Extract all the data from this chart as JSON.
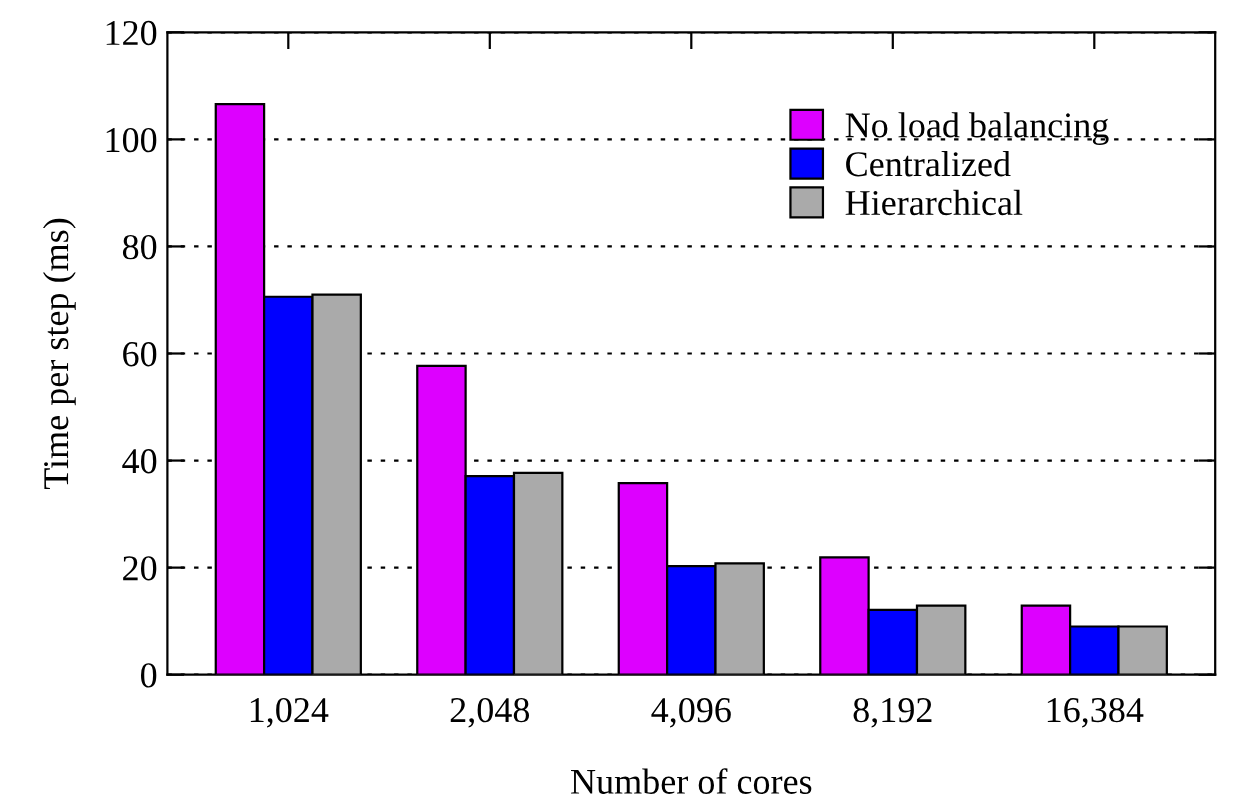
{
  "chart_data": {
    "type": "bar",
    "xlabel": "Number of cores",
    "ylabel": "Time per step (ms)",
    "categories": [
      "1,024",
      "2,048",
      "4,096",
      "8,192",
      "16,384"
    ],
    "series": [
      {
        "name": "No load balancing",
        "color": "#dd00ff",
        "values": [
          106.6,
          57.7,
          35.8,
          21.9,
          12.9
        ]
      },
      {
        "name": "Centralized",
        "color": "#0000ff",
        "values": [
          70.6,
          37.1,
          20.3,
          12.1,
          9.0
        ]
      },
      {
        "name": "Hierarchical",
        "color": "#aaaaaa",
        "values": [
          71.0,
          37.7,
          20.8,
          12.9,
          9.0
        ]
      }
    ],
    "ylim": [
      0,
      120
    ],
    "yticks": [
      0,
      20,
      40,
      60,
      80,
      100,
      120
    ],
    "grid": "y",
    "legend": "top right"
  }
}
